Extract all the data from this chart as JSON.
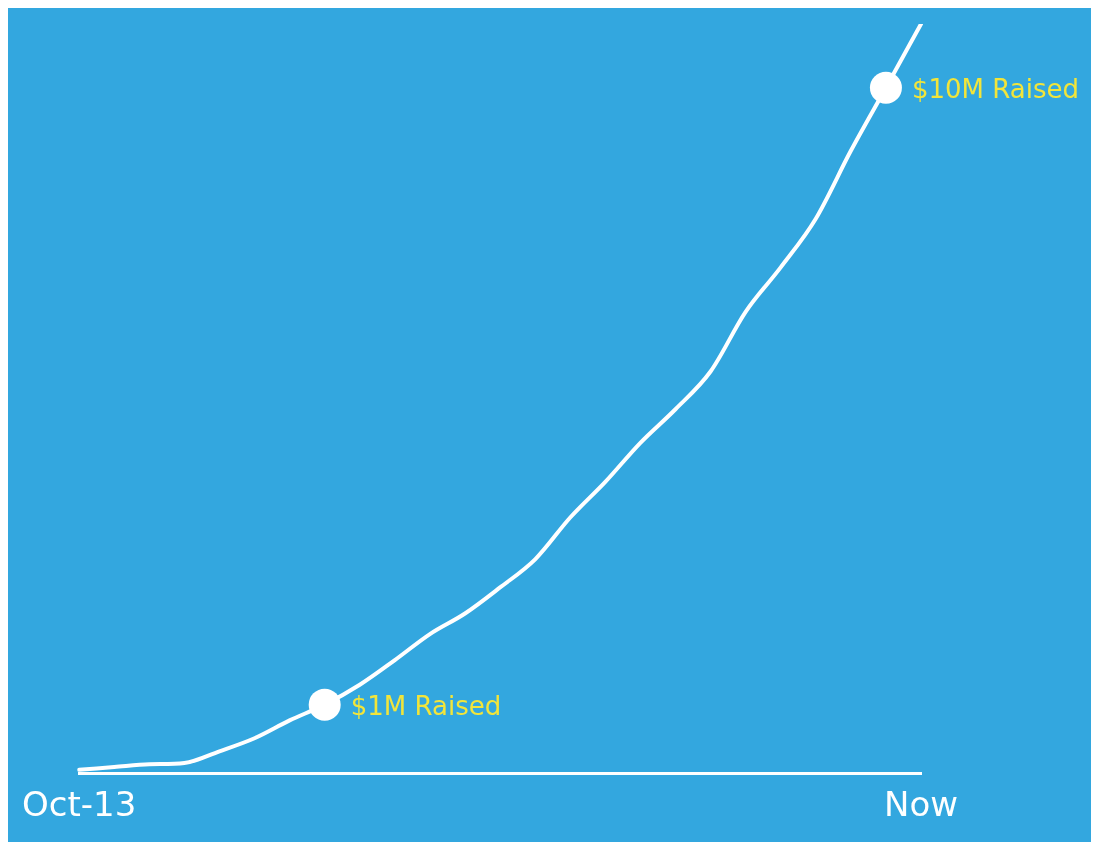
{
  "chart_data": {
    "type": "line",
    "categories": [
      "Oct-13",
      null,
      null,
      null,
      null,
      null,
      null,
      null,
      null,
      null,
      null,
      null,
      null,
      null,
      null,
      null,
      null,
      null,
      null,
      null,
      null,
      null,
      null,
      null,
      "Now"
    ],
    "tick_labels": "x",
    "series": [
      {
        "type": "line",
        "color": "#ffffff",
        "marker": "none",
        "values": [
          0.05,
          0.09,
          0.13,
          0.15,
          0.32,
          0.51,
          0.77,
          1,
          1.29,
          1.65,
          2.03,
          2.33,
          2.71,
          3.12,
          3.73,
          4.25,
          4.82,
          5.31,
          5.86,
          6.73,
          7.38,
          8.09,
          9.08,
          10,
          10.93
        ]
      },
      {
        "type": "scatter",
        "color": "#ffffff",
        "marker": "circle",
        "values": [
          null,
          null,
          null,
          null,
          null,
          null,
          null,
          1,
          null,
          null,
          null,
          null,
          null,
          null,
          null,
          null,
          null,
          null,
          null,
          null,
          null,
          null,
          null,
          10,
          null
        ],
        "value_labels": [
          null,
          null,
          null,
          null,
          null,
          null,
          null,
          "$1M Raised",
          null,
          null,
          null,
          null,
          null,
          null,
          null,
          null,
          null,
          null,
          null,
          null,
          null,
          null,
          null,
          "$10M Raised",
          null
        ]
      }
    ],
    "grid": false,
    "legend": false
  }
}
